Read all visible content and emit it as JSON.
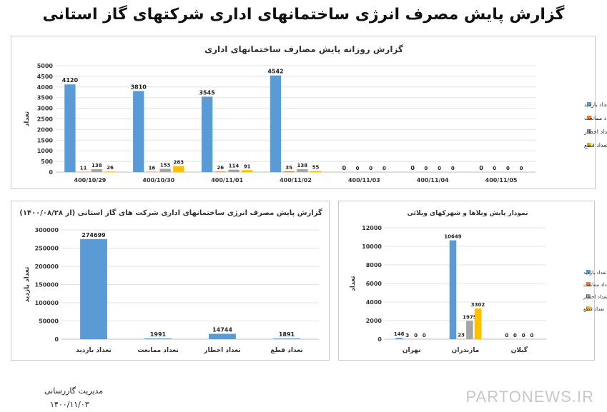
{
  "report_title": "گزارش پایش مصرف انرژی ساختمانهای اداری شرکتهای گاز استانی",
  "footer": {
    "org": "مدیریت گازرسانی",
    "date": "۱۴۰۰/۱۱/۰۳"
  },
  "watermark": "PARTONEWS.IR",
  "colors": {
    "visits": "#5b9bd5",
    "bans": "#ed7d31",
    "warnings": "#a5a5a5",
    "cuts": "#ffc000"
  },
  "chart_data": [
    {
      "id": "daily",
      "type": "bar",
      "title": "گزارش روزانه پایش مصارف ساختمانهای اداری",
      "ylabel": "تعداد",
      "xlabel": "",
      "ylim": [
        0,
        5000
      ],
      "yticks": [
        0,
        500,
        1000,
        1500,
        2000,
        2500,
        3000,
        3500,
        4000,
        4500,
        5000
      ],
      "grid": true,
      "legend": "right",
      "categories": [
        "400/10/29",
        "400/10/30",
        "400/11/01",
        "400/11/02",
        "400/11/03",
        "400/11/04",
        "400/11/05"
      ],
      "series": [
        {
          "name": "تعداد بازدید",
          "color": "#5b9bd5",
          "values": [
            4120,
            3810,
            3545,
            4542,
            0,
            0,
            0
          ]
        },
        {
          "name": "تعداد ممانعت",
          "color": "#ed7d31",
          "values": [
            11,
            16,
            26,
            35,
            0,
            0,
            0
          ]
        },
        {
          "name": "تعداد اخطار",
          "color": "#a5a5a5",
          "values": [
            138,
            153,
            114,
            138,
            0,
            0,
            0
          ]
        },
        {
          "name": "تعداد قطع",
          "color": "#ffc000",
          "values": [
            26,
            283,
            91,
            55,
            0,
            0,
            0
          ]
        }
      ]
    },
    {
      "id": "cumulative",
      "type": "bar",
      "title": "گزارش پایش مصرف انرژی ساختمانهای اداری شرکت های گاز استانی (از ۱۴۰۰/۰۸/۲۸)",
      "ylabel": "تعداد بازدید",
      "xlabel": "",
      "ylim": [
        0,
        300000
      ],
      "yticks": [
        0,
        50000,
        100000,
        150000,
        200000,
        250000,
        300000
      ],
      "grid": true,
      "categories": [
        "تعداد بازدید",
        "تعداد ممانعت",
        "تعداد اخطار",
        "تعداد قطع"
      ],
      "values": [
        274699,
        1991,
        14744,
        1891
      ],
      "color": "#5b9bd5"
    },
    {
      "id": "villas",
      "type": "bar",
      "title": "نمودار پایش ویلاها و شهرکهای ویلائی",
      "ylabel": "تعداد",
      "xlabel": "",
      "ylim": [
        0,
        12000
      ],
      "yticks": [
        0,
        2000,
        4000,
        6000,
        8000,
        10000,
        12000
      ],
      "grid": true,
      "legend": "right",
      "categories": [
        "تهران",
        "مازندران",
        "گیلان"
      ],
      "series": [
        {
          "name": "تعداد بازدید",
          "color": "#5b9bd5",
          "values": [
            146,
            10649,
            0
          ]
        },
        {
          "name": "تعداد ممانعت",
          "color": "#ed7d31",
          "values": [
            3,
            23,
            0
          ]
        },
        {
          "name": "تعداد اخطار",
          "color": "#a5a5a5",
          "values": [
            0,
            1975,
            0
          ]
        },
        {
          "name": "تعداد قطع",
          "color": "#ffc000",
          "values": [
            0,
            3302,
            0
          ]
        }
      ]
    }
  ]
}
